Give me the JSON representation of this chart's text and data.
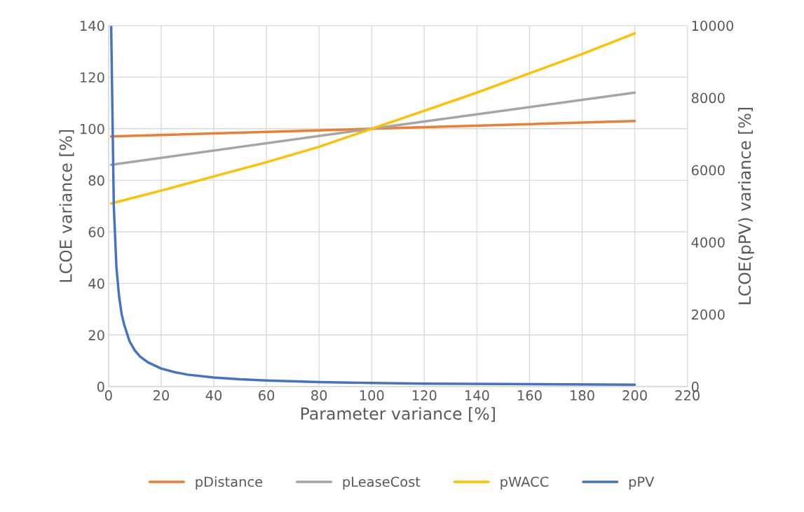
{
  "chart_data": {
    "type": "line",
    "xlabel": "Parameter variance [%]",
    "ylabel": "LCOE variance [%]",
    "y2label": "LCOE(pPV) variance [%]",
    "xlim": [
      0,
      220
    ],
    "xticks": [
      0,
      20,
      40,
      60,
      80,
      100,
      120,
      140,
      160,
      180,
      200,
      220
    ],
    "ylim": [
      0,
      140
    ],
    "yticks": [
      0,
      20,
      40,
      60,
      80,
      100,
      120,
      140
    ],
    "y2lim": [
      0,
      10000
    ],
    "y2ticks": [
      0,
      2000,
      4000,
      6000,
      8000,
      10000
    ],
    "grid": true,
    "legend": "bottom",
    "marker": "none",
    "line_style": "solid",
    "series": [
      {
        "name": "pDistance",
        "color": "#ed7d31",
        "x": [
          1,
          100,
          200
        ],
        "values": [
          97,
          100,
          103
        ]
      },
      {
        "name": "pLeaseCost",
        "color": "#a5a5a5",
        "x": [
          1,
          100,
          200
        ],
        "values": [
          86,
          100,
          114
        ]
      },
      {
        "name": "pWACC",
        "color": "#ffc000",
        "x": [
          1,
          20,
          40,
          60,
          80,
          100,
          120,
          140,
          160,
          180,
          200
        ],
        "values": [
          71,
          76,
          81.5,
          87,
          93,
          100,
          107,
          114,
          121.5,
          129,
          137
        ]
      },
      {
        "name": "pPV",
        "color": "#4472c4",
        "axis": "y2",
        "x": [
          1,
          2,
          3,
          4,
          5,
          6,
          8,
          10,
          12,
          15,
          20,
          25,
          30,
          40,
          50,
          60,
          80,
          100,
          120,
          150,
          200
        ],
        "values": [
          10000,
          5000,
          3300,
          2500,
          2000,
          1700,
          1250,
          1000,
          830,
          670,
          500,
          400,
          330,
          250,
          200,
          170,
          125,
          100,
          80,
          70,
          50
        ]
      }
    ]
  }
}
